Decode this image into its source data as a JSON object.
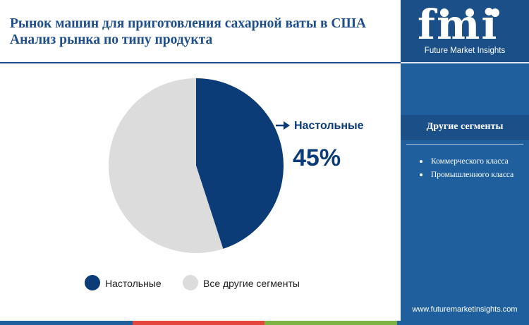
{
  "header": {
    "title": "Рынок машин для приготовления сахарной ваты в США Анализ рынка по типу продукта"
  },
  "chart_data": {
    "type": "pie",
    "slices": [
      {
        "label": "Настольные",
        "value": 45,
        "color": "#0c3c78"
      },
      {
        "label": "Все другие сегменты",
        "value": 55,
        "color": "#dcdcdc"
      }
    ],
    "callout": {
      "label": "Настольные",
      "value_text": "45%"
    },
    "legend": {
      "placement": "bottom",
      "entries": [
        "Настольные",
        "Все другие сегменты"
      ]
    }
  },
  "sidebar": {
    "logo_text": "fmi",
    "logo_subtitle": "Future Market Insights",
    "segments_heading": "Другие сегменты",
    "segments": [
      "Коммерческого класса",
      "Промышленного класса"
    ],
    "website": "www.futuremarketinsights.com"
  },
  "colors": {
    "brand_blue": "#1f4e8c",
    "sidebar_blue": "#1f5f9e",
    "bottom_strip": [
      "#1f5f9e",
      "#e2463c",
      "#7cb342",
      "#1f5f9e"
    ]
  }
}
